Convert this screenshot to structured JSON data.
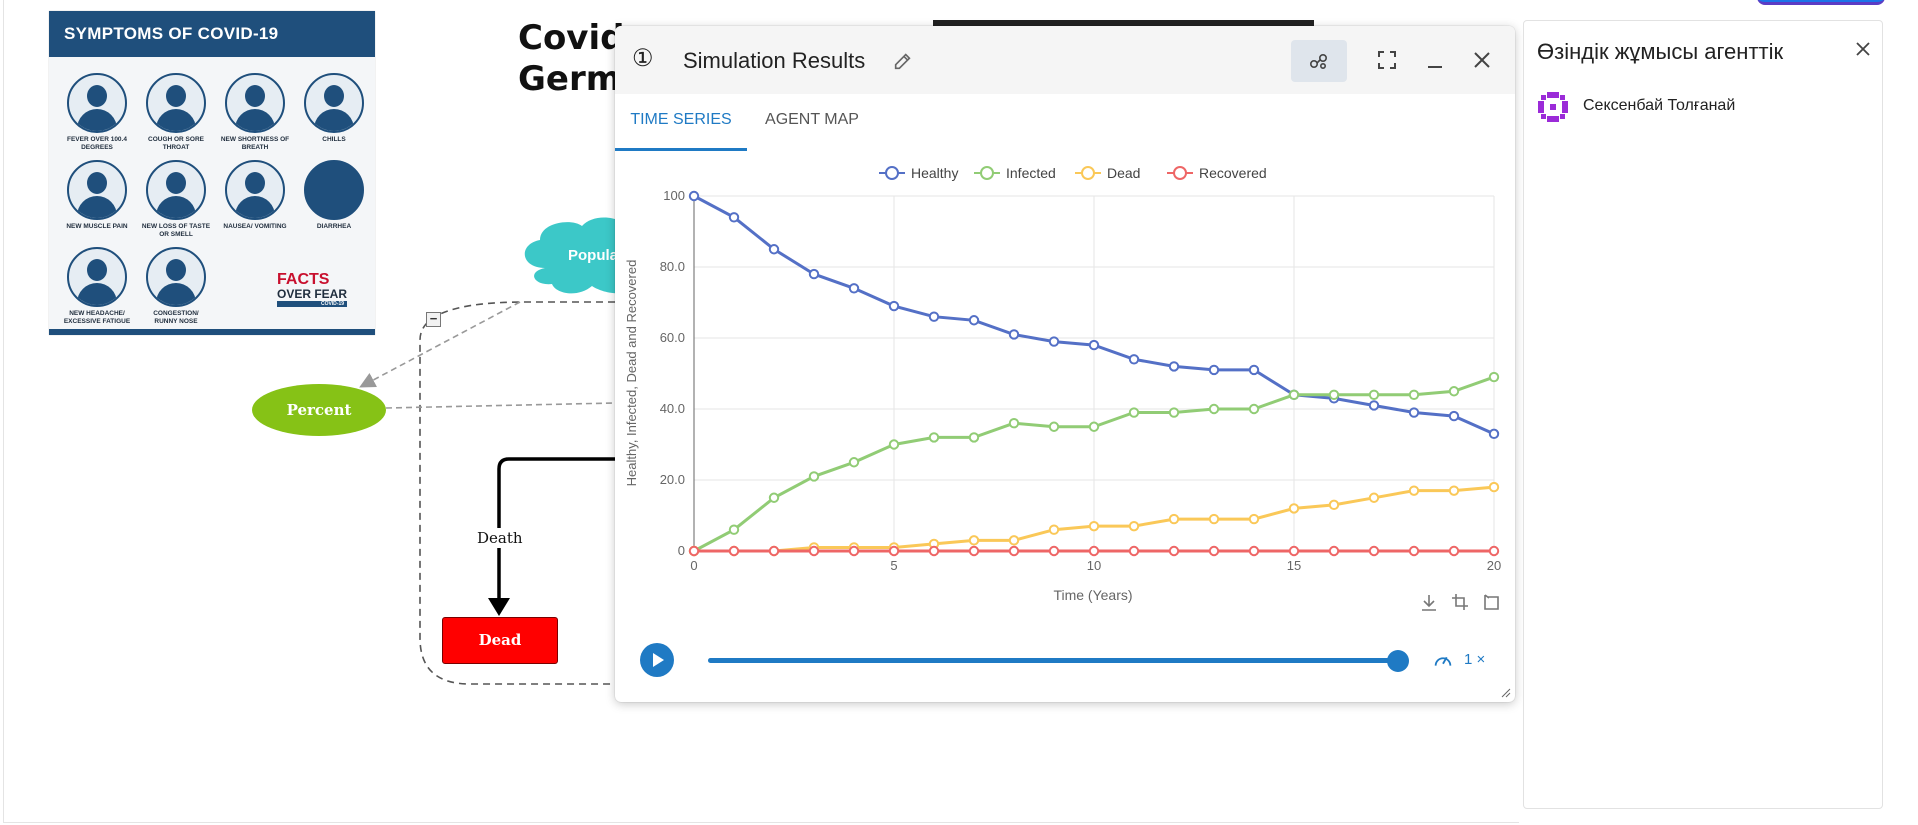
{
  "poster": {
    "title": "SYMPTOMS OF COVID-19",
    "symptoms": [
      "FEVER OVER 100.4 DEGREES",
      "COUGH OR SORE THROAT",
      "NEW SHORTNESS OF BREATH",
      "CHILLS",
      "NEW MUSCLE PAIN",
      "NEW LOSS OF TASTE OR SMELL",
      "NAUSEA/ VOMITING",
      "DIARRHEA",
      "NEW HEADACHE/ EXCESSIVE FATIGUE",
      "CONGESTION/ RUNNY NOSE"
    ],
    "brand_line1": "FACTS",
    "brand_line2": "OVER FEAR",
    "brand_line3": "COVID-19"
  },
  "model": {
    "title_line1": "Covid",
    "title_line2": "Germa",
    "cloud_label": "Popula",
    "percent_infected": "Percent Infected",
    "death_flow": "Death",
    "dead_stock": "Dead",
    "colors": {
      "cloud": "#3cc8c8",
      "percent": "#86c216",
      "dead": "#ff0000"
    }
  },
  "sim": {
    "number": "①",
    "title": "Simulation Results",
    "tabs": [
      "TIME SERIES",
      "AGENT MAP"
    ],
    "selected_tab": 0,
    "speed_label": "1 ×",
    "progress": 1.0,
    "accent": "#1f7ac4"
  },
  "chart_data": {
    "type": "line",
    "xlabel": "Time (Years)",
    "ylabel": "Healthy, Infected, Dead and Recovered",
    "xlim": [
      0,
      20
    ],
    "ylim": [
      0,
      100
    ],
    "x_ticks": [
      "0",
      "5",
      "10",
      "15",
      "20"
    ],
    "y_ticks": [
      "0",
      "20.0",
      "40.0",
      "60.0",
      "80.0",
      "100"
    ],
    "x": [
      0,
      1,
      2,
      3,
      4,
      5,
      6,
      7,
      8,
      9,
      10,
      11,
      12,
      13,
      14,
      15,
      16,
      17,
      18,
      19,
      20
    ],
    "series": [
      {
        "name": "Healthy",
        "color": "#5470c6",
        "values": [
          100,
          94,
          85,
          78,
          74,
          69,
          66,
          65,
          61,
          59,
          58,
          54,
          52,
          51,
          51,
          44,
          43,
          41,
          39,
          38,
          33
        ]
      },
      {
        "name": "Infected",
        "color": "#91cc75",
        "values": [
          0,
          6,
          15,
          21,
          25,
          30,
          32,
          32,
          36,
          35,
          35,
          39,
          39,
          40,
          40,
          44,
          44,
          44,
          44,
          45,
          49
        ]
      },
      {
        "name": "Dead",
        "color": "#fac858",
        "values": [
          0,
          0,
          0,
          1,
          1,
          1,
          2,
          3,
          3,
          6,
          7,
          7,
          9,
          9,
          9,
          12,
          13,
          15,
          17,
          17,
          18
        ]
      },
      {
        "name": "Recovered",
        "color": "#ee6666",
        "values": [
          0,
          0,
          0,
          0,
          0,
          0,
          0,
          0,
          0,
          0,
          0,
          0,
          0,
          0,
          0,
          0,
          0,
          0,
          0,
          0,
          0
        ]
      }
    ],
    "legend": "top-center",
    "grid": true
  },
  "side_panel": {
    "title": "Өзіндік жұмысы агенттік",
    "agents": [
      {
        "name": "Сексенбай Толғанай",
        "avatar_color": "#9b2bd8"
      }
    ]
  }
}
